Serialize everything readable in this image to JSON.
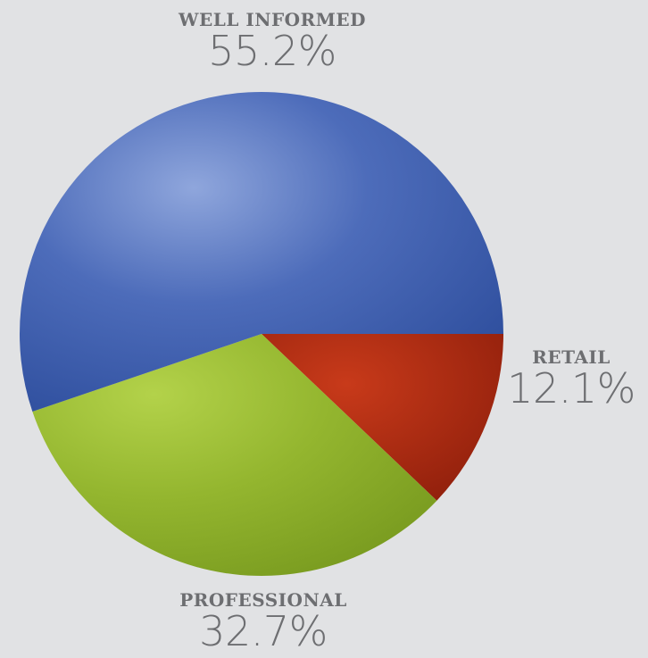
{
  "chart_data": {
    "type": "pie",
    "slices": [
      {
        "label": "WELL INFORMED",
        "value": 55.2,
        "display": "55.2%",
        "color": "#3a5aab"
      },
      {
        "label": "RETAIL",
        "value": 12.1,
        "display": "12.1%",
        "color": "#b2260e"
      },
      {
        "label": "PROFESSIONAL",
        "value": 32.7,
        "display": "32.7%",
        "color": "#8fb12a"
      }
    ],
    "legend": "none"
  }
}
